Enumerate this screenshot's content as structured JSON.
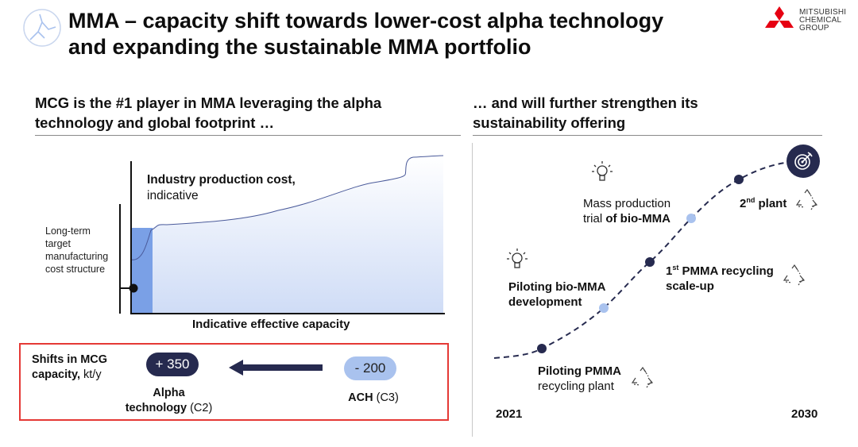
{
  "header": {
    "title_line1": "MMA – capacity shift towards lower-cost alpha technology",
    "title_line2": "and expanding the sustainable MMA portfolio",
    "logo_line1": "MITSUBISHI",
    "logo_line2": "CHEMICAL",
    "logo_line3": "GROUP",
    "colors": {
      "logo_red": "#e60012",
      "navy": "#262a4f",
      "light_blue": "#a9c2ee"
    }
  },
  "left": {
    "subhead_line1": "MCG is the #1 player in MMA leveraging the alpha",
    "subhead_line2": "technology and global footprint …",
    "chart": {
      "title_bold": "Industry production cost,",
      "title_regular": "indicative",
      "ylabel_line1": "Long-term",
      "ylabel_line2": "target",
      "ylabel_line3": "manufacturing",
      "ylabel_line4": "cost structure",
      "xlabel": "Indicative effective capacity"
    },
    "shifts": {
      "label_bold": "Shifts in MCG",
      "label_line2_bold": "capacity,",
      "label_line2_regular": " kt/y",
      "alpha_value": "+ 350",
      "alpha_label_line1": "Alpha",
      "alpha_label_line2": "technology",
      "alpha_suffix": " (C2)",
      "ach_value": "- 200",
      "ach_label": "ACH",
      "ach_suffix": " (C3)"
    }
  },
  "right": {
    "subhead_line1": "… and will further strengthen its",
    "subhead_line2": "sustainability offering",
    "timeline": {
      "start_year": "2021",
      "end_year": "2030",
      "m1_bold": "Piloting PMMA",
      "m1_regular": "recycling plant",
      "m2_line1": "Piloting bio-MMA",
      "m2_line2": "development",
      "m3_line1": "1",
      "m3_sup": "st",
      "m3_rest": " PMMA recycling",
      "m3_line2": "scale-up",
      "m4_line1": "Mass production",
      "m4_line2_regular": "trial ",
      "m4_line2_bold": "of bio-MMA",
      "m5_line1": "2",
      "m5_sup": "nd",
      "m5_rest": " plant",
      "icons": [
        "lightbulb-icon",
        "recycle-icon",
        "target-icon"
      ]
    }
  }
}
